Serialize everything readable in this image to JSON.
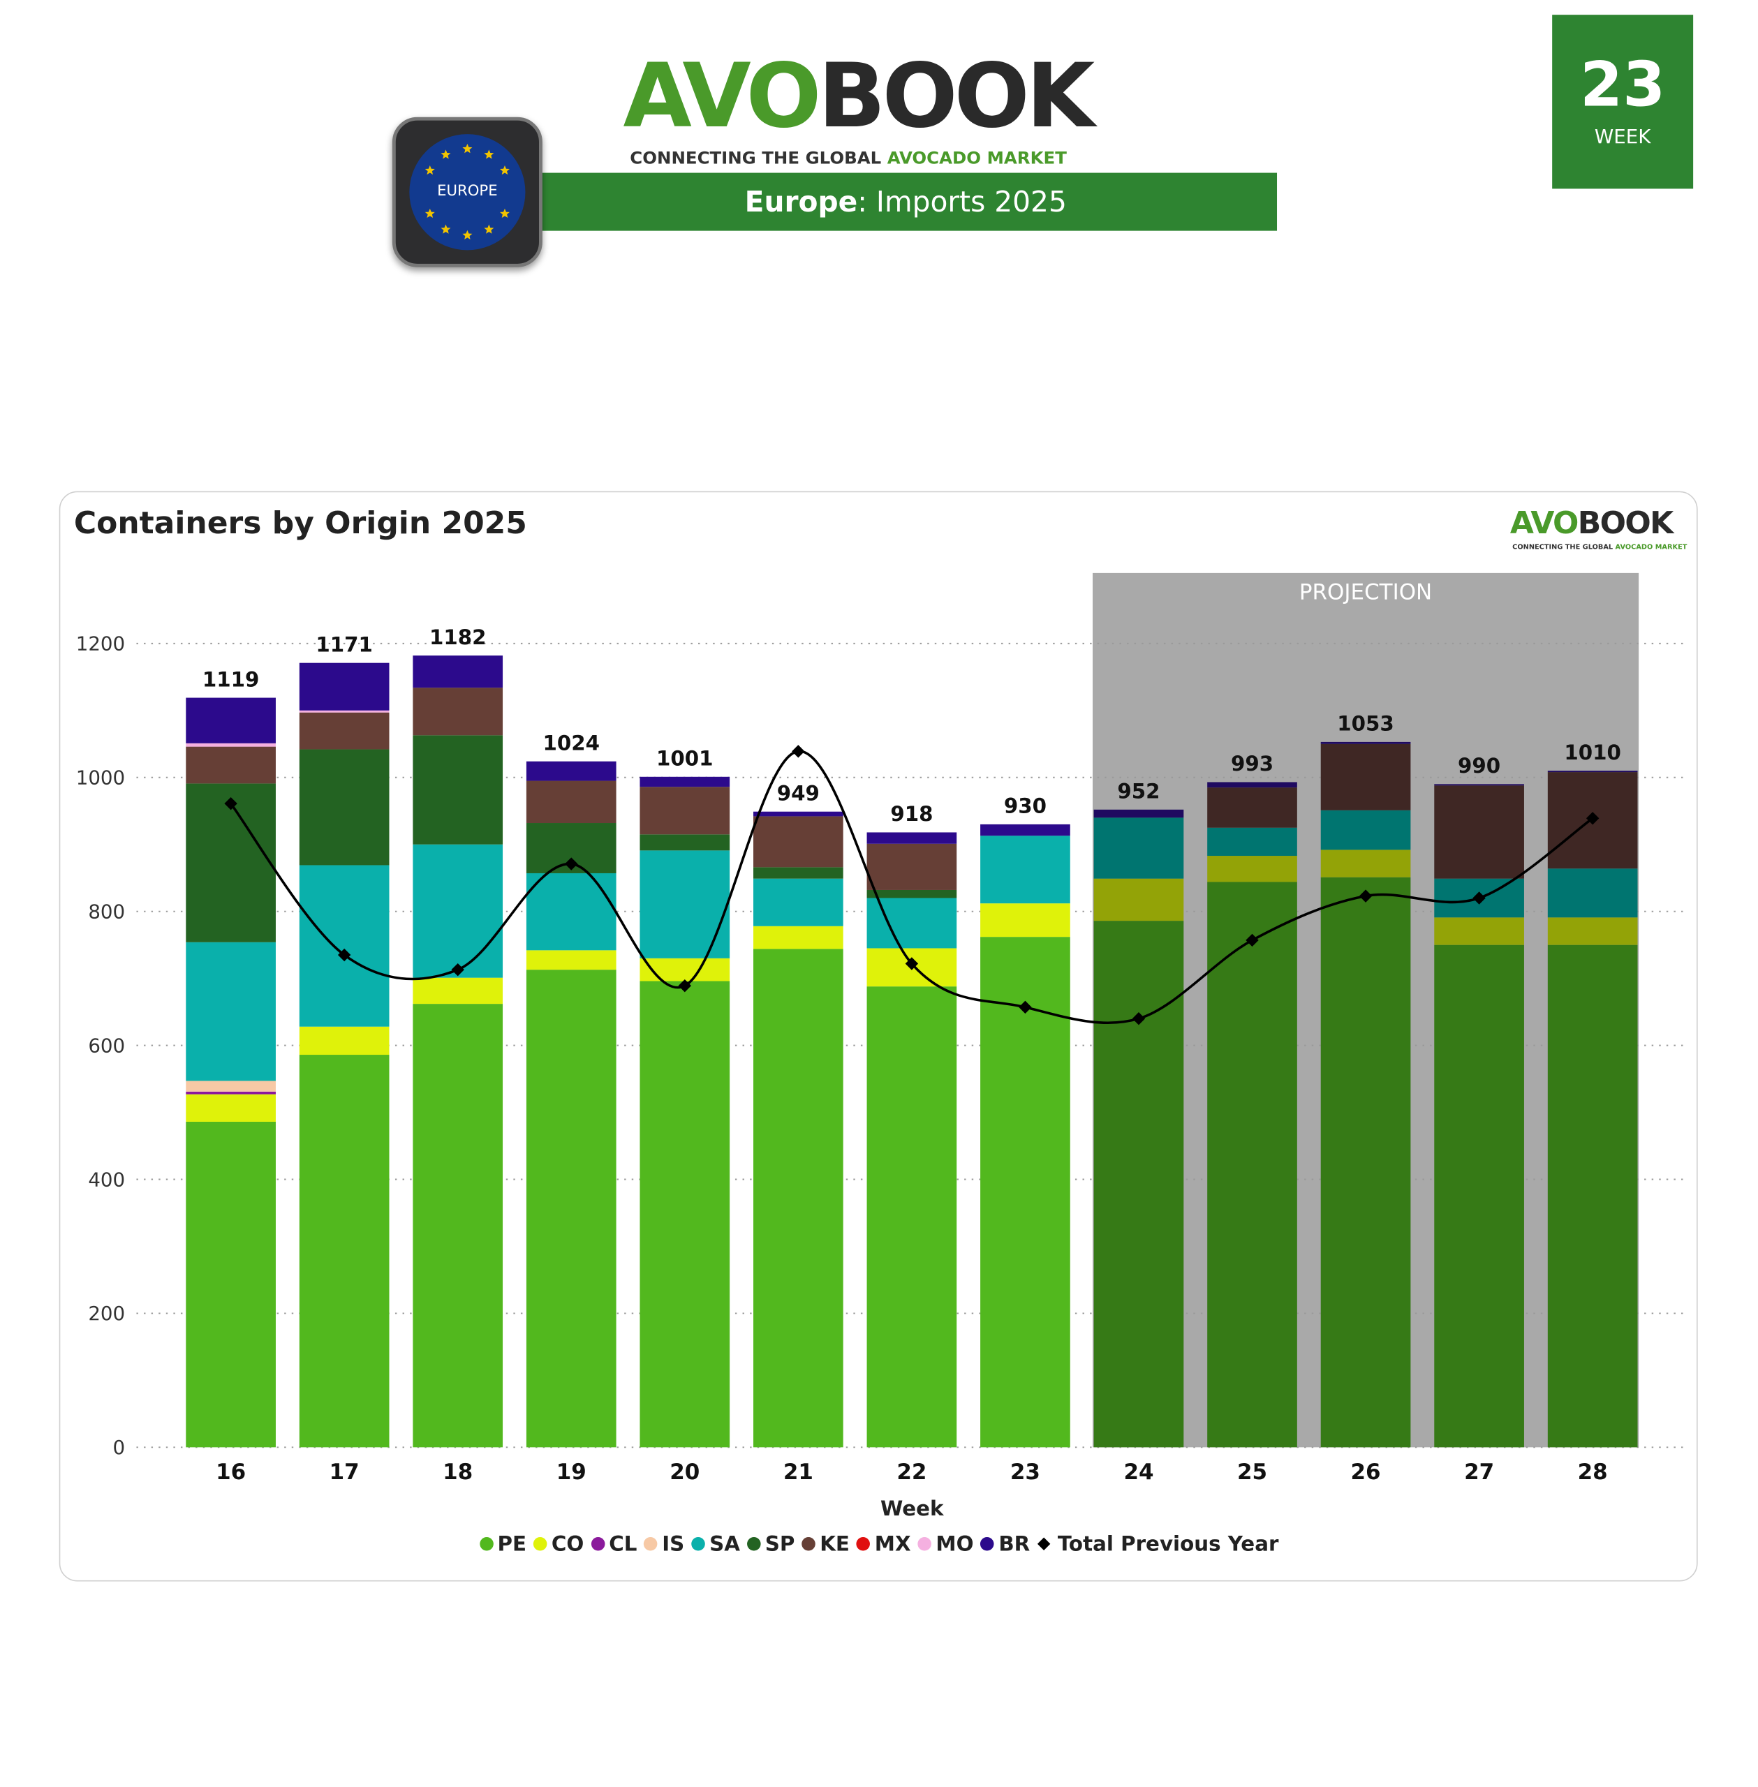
{
  "header": {
    "logo_part1": "AVO",
    "logo_part2": "BOOK",
    "tagline_part1": "CONNECTING THE GLOBAL ",
    "tagline_part2": "AVOCADO MARKET",
    "region_bold": "Europe",
    "subtitle_rest": ": Imports 2025",
    "badge_label": "EUROPE",
    "week_number": "23",
    "week_label": "WEEK",
    "brand_color": "#2e8431"
  },
  "chart_data": {
    "type": "bar",
    "stacked": true,
    "title": "Containers by Origin 2025",
    "xlabel": "Week",
    "ylabel": "",
    "ylim": [
      0,
      1300
    ],
    "yticks": [
      0,
      200,
      400,
      600,
      800,
      1000,
      1200
    ],
    "grid": "horizontal dotted",
    "legend_position": "bottom",
    "projection_label": "PROJECTION",
    "projection_from_week": "24",
    "categories": [
      "16",
      "17",
      "18",
      "19",
      "20",
      "21",
      "22",
      "23",
      "24",
      "25",
      "26",
      "27",
      "28"
    ],
    "totals": [
      1119,
      1171,
      1182,
      1024,
      1001,
      949,
      918,
      930,
      952,
      993,
      1053,
      990,
      1010
    ],
    "series": [
      {
        "name": "PE",
        "color": "#52b81e",
        "projection_color": "#367a16",
        "values": [
          486,
          586,
          662,
          713,
          696,
          744,
          688,
          762,
          786,
          844,
          851,
          750,
          750
        ]
      },
      {
        "name": "CO",
        "color": "#dff20a",
        "projection_color": "#93a307",
        "values": [
          41,
          42,
          39,
          29,
          34,
          34,
          57,
          50,
          63,
          39,
          41,
          41,
          41
        ]
      },
      {
        "name": "CL",
        "color": "#8b1a9c",
        "projection_color": "#5a1066",
        "values": [
          4,
          0,
          0,
          0,
          0,
          0,
          0,
          0,
          0,
          0,
          0,
          0,
          0
        ]
      },
      {
        "name": "IS",
        "color": "#f7c9a5",
        "projection_color": "#a08570",
        "values": [
          16,
          0,
          0,
          0,
          0,
          0,
          0,
          0,
          0,
          0,
          0,
          0,
          0
        ]
      },
      {
        "name": "SA",
        "color": "#0ab0ab",
        "projection_color": "#007570",
        "values": [
          207,
          241,
          199,
          115,
          161,
          71,
          75,
          101,
          91,
          42,
          59,
          58,
          73
        ]
      },
      {
        "name": "SP",
        "color": "#236322",
        "projection_color": "#1a441a",
        "values": [
          237,
          173,
          163,
          75,
          24,
          17,
          12,
          0,
          0,
          0,
          0,
          0,
          0
        ]
      },
      {
        "name": "KE",
        "color": "#663f36",
        "projection_color": "#3f2724",
        "values": [
          55,
          55,
          71,
          63,
          71,
          76,
          69,
          0,
          0,
          60,
          99,
          139,
          144
        ]
      },
      {
        "name": "MX",
        "color": "#e01010",
        "projection_color": "#901010",
        "values": [
          0,
          0,
          0,
          0,
          0,
          0,
          0,
          0,
          0,
          0,
          0,
          0,
          0
        ]
      },
      {
        "name": "MO",
        "color": "#f5b0e0",
        "projection_color": "#a07090",
        "values": [
          5,
          3,
          0,
          0,
          0,
          0,
          0,
          0,
          0,
          0,
          0,
          0,
          0
        ]
      },
      {
        "name": "BR",
        "color": "#2c0a8c",
        "projection_color": "#1f0a60",
        "values": [
          68,
          71,
          48,
          29,
          15,
          7,
          17,
          17,
          12,
          8,
          3,
          2,
          2
        ]
      }
    ],
    "line_series": {
      "name": "Total Previous Year",
      "color": "#000000",
      "values": [
        961,
        735,
        713,
        871,
        689,
        1039,
        722,
        657,
        640,
        757,
        823,
        820,
        939
      ]
    }
  }
}
